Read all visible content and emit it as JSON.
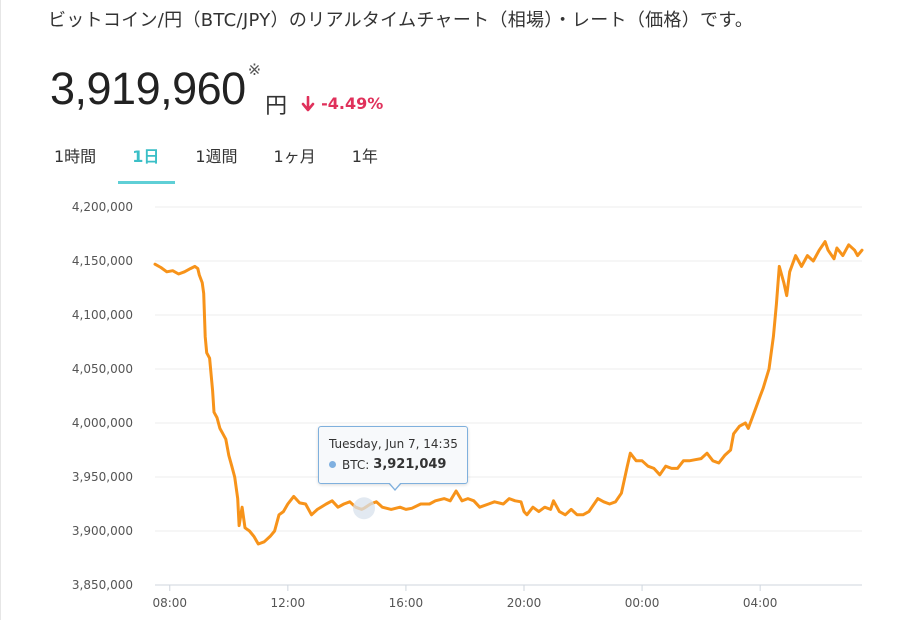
{
  "header": {
    "title": "ビットコイン/円（BTC/JPY）のリアルタイムチャート（相場）・レート（価格）です。",
    "price": "3,919,960",
    "price_note": "※",
    "unit": "円",
    "change": "-4.49%"
  },
  "tabs": [
    {
      "label": "1時間"
    },
    {
      "label": "1日",
      "active": true
    },
    {
      "label": "1週間"
    },
    {
      "label": "1ヶ月"
    },
    {
      "label": "1年"
    }
  ],
  "tooltip": {
    "date": "Tuesday, Jun 7, 14:35",
    "series": "BTC:",
    "value": "3,921,049"
  },
  "colors": {
    "line": "#f7931a",
    "accent": "#3bbfc7",
    "negative": "#e0315b",
    "tooltip_border": "#7fb0dd"
  },
  "chart_data": {
    "type": "line",
    "series": [
      {
        "name": "BTC",
        "points": [
          [
            7.5,
            4147000
          ],
          [
            7.7,
            4144000
          ],
          [
            7.9,
            4140000
          ],
          [
            8.1,
            4141000
          ],
          [
            8.3,
            4138000
          ],
          [
            8.5,
            4140000
          ],
          [
            8.7,
            4143000
          ],
          [
            8.85,
            4145000
          ],
          [
            8.95,
            4143000
          ],
          [
            9.0,
            4137000
          ],
          [
            9.1,
            4130000
          ],
          [
            9.15,
            4120000
          ],
          [
            9.2,
            4080000
          ],
          [
            9.25,
            4065000
          ],
          [
            9.35,
            4060000
          ],
          [
            9.45,
            4030000
          ],
          [
            9.5,
            4010000
          ],
          [
            9.6,
            4005000
          ],
          [
            9.7,
            3995000
          ],
          [
            9.8,
            3990000
          ],
          [
            9.9,
            3985000
          ],
          [
            10.0,
            3970000
          ],
          [
            10.1,
            3960000
          ],
          [
            10.2,
            3950000
          ],
          [
            10.3,
            3930000
          ],
          [
            10.35,
            3905000
          ],
          [
            10.45,
            3922000
          ],
          [
            10.55,
            3903000
          ],
          [
            10.7,
            3900000
          ],
          [
            10.85,
            3895000
          ],
          [
            11.0,
            3888000
          ],
          [
            11.2,
            3890000
          ],
          [
            11.4,
            3895000
          ],
          [
            11.55,
            3900000
          ],
          [
            11.7,
            3915000
          ],
          [
            11.85,
            3918000
          ],
          [
            12.0,
            3925000
          ],
          [
            12.2,
            3932000
          ],
          [
            12.4,
            3926000
          ],
          [
            12.6,
            3925000
          ],
          [
            12.8,
            3915000
          ],
          [
            13.0,
            3920000
          ],
          [
            13.3,
            3925000
          ],
          [
            13.5,
            3928000
          ],
          [
            13.7,
            3922000
          ],
          [
            13.9,
            3925000
          ],
          [
            14.1,
            3927000
          ],
          [
            14.3,
            3922000
          ],
          [
            14.5,
            3920000
          ],
          [
            14.58,
            3921049
          ],
          [
            14.8,
            3925000
          ],
          [
            15.0,
            3927000
          ],
          [
            15.2,
            3922000
          ],
          [
            15.5,
            3920000
          ],
          [
            15.8,
            3922000
          ],
          [
            16.0,
            3920000
          ],
          [
            16.2,
            3921000
          ],
          [
            16.5,
            3925000
          ],
          [
            16.8,
            3925000
          ],
          [
            17.0,
            3928000
          ],
          [
            17.3,
            3930000
          ],
          [
            17.5,
            3928000
          ],
          [
            17.7,
            3937000
          ],
          [
            17.9,
            3928000
          ],
          [
            18.1,
            3930000
          ],
          [
            18.3,
            3928000
          ],
          [
            18.5,
            3922000
          ],
          [
            18.8,
            3925000
          ],
          [
            19.0,
            3927000
          ],
          [
            19.3,
            3925000
          ],
          [
            19.5,
            3930000
          ],
          [
            19.7,
            3928000
          ],
          [
            19.9,
            3927000
          ],
          [
            20.0,
            3918000
          ],
          [
            20.1,
            3915000
          ],
          [
            20.3,
            3922000
          ],
          [
            20.5,
            3918000
          ],
          [
            20.7,
            3922000
          ],
          [
            20.9,
            3920000
          ],
          [
            21.0,
            3928000
          ],
          [
            21.2,
            3918000
          ],
          [
            21.4,
            3915000
          ],
          [
            21.6,
            3920000
          ],
          [
            21.8,
            3915000
          ],
          [
            22.0,
            3915000
          ],
          [
            22.2,
            3918000
          ],
          [
            22.5,
            3930000
          ],
          [
            22.7,
            3927000
          ],
          [
            22.9,
            3925000
          ],
          [
            23.1,
            3927000
          ],
          [
            23.3,
            3935000
          ],
          [
            23.5,
            3960000
          ],
          [
            23.6,
            3972000
          ],
          [
            23.8,
            3965000
          ],
          [
            24.0,
            3965000
          ],
          [
            24.2,
            3960000
          ],
          [
            24.4,
            3958000
          ],
          [
            24.6,
            3952000
          ],
          [
            24.8,
            3960000
          ],
          [
            25.0,
            3958000
          ],
          [
            25.2,
            3958000
          ],
          [
            25.4,
            3965000
          ],
          [
            25.6,
            3965000
          ],
          [
            25.8,
            3966000
          ],
          [
            26.0,
            3967000
          ],
          [
            26.2,
            3972000
          ],
          [
            26.4,
            3965000
          ],
          [
            26.6,
            3963000
          ],
          [
            26.8,
            3970000
          ],
          [
            27.0,
            3975000
          ],
          [
            27.1,
            3990000
          ],
          [
            27.3,
            3997000
          ],
          [
            27.5,
            4000000
          ],
          [
            27.6,
            3995000
          ],
          [
            27.8,
            4010000
          ],
          [
            28.0,
            4025000
          ],
          [
            28.1,
            4032000
          ],
          [
            28.3,
            4050000
          ],
          [
            28.45,
            4080000
          ],
          [
            28.55,
            4110000
          ],
          [
            28.65,
            4145000
          ],
          [
            28.8,
            4130000
          ],
          [
            28.9,
            4118000
          ],
          [
            29.0,
            4140000
          ],
          [
            29.2,
            4155000
          ],
          [
            29.4,
            4145000
          ],
          [
            29.6,
            4155000
          ],
          [
            29.8,
            4150000
          ],
          [
            30.0,
            4160000
          ],
          [
            30.2,
            4168000
          ],
          [
            30.3,
            4160000
          ],
          [
            30.5,
            4152000
          ],
          [
            30.6,
            4162000
          ],
          [
            30.8,
            4155000
          ],
          [
            31.0,
            4165000
          ],
          [
            31.2,
            4160000
          ],
          [
            31.3,
            4155000
          ],
          [
            31.45,
            4160000
          ]
        ]
      }
    ],
    "x_ticks": [
      {
        "value": 8,
        "label": "08:00"
      },
      {
        "value": 12,
        "label": "12:00"
      },
      {
        "value": 16,
        "label": "16:00"
      },
      {
        "value": 20,
        "label": "20:00"
      },
      {
        "value": 24,
        "label": "00:00"
      },
      {
        "value": 28,
        "label": "04:00"
      }
    ],
    "y_ticks": [
      {
        "value": 4200000,
        "label": "4,200,000"
      },
      {
        "value": 4150000,
        "label": "4,150,000"
      },
      {
        "value": 4100000,
        "label": "4,100,000"
      },
      {
        "value": 4050000,
        "label": "4,050,000"
      },
      {
        "value": 4000000,
        "label": "4,000,000"
      },
      {
        "value": 3950000,
        "label": "3,950,000"
      },
      {
        "value": 3900000,
        "label": "3,900,000"
      },
      {
        "value": 3850000,
        "label": "3,850,000"
      }
    ],
    "ylim": [
      3850000,
      4200000
    ],
    "xlim": [
      7.5,
      31.45
    ],
    "highlight_x": 14.58,
    "grid": true
  }
}
